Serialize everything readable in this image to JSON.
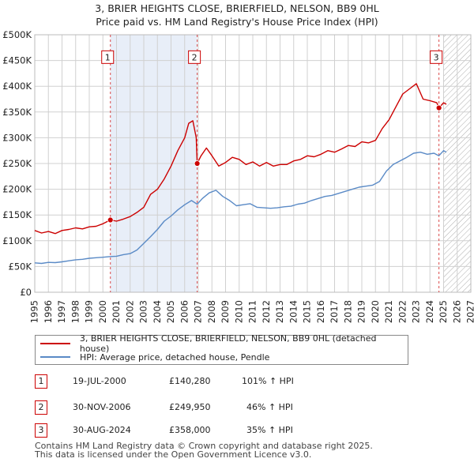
{
  "header": {
    "title_line1": "3, BRIER HEIGHTS CLOSE, BRIERFIELD, NELSON, BB9 0HL",
    "title_line2": "Price paid vs. HM Land Registry's House Price Index (HPI)"
  },
  "colors": {
    "property": "#cc0000",
    "hpi": "#5a8ac6",
    "shade": "#e8eef8",
    "grid": "#d0d0d0"
  },
  "chart_data": {
    "type": "line",
    "title": "Price paid vs. HM Land Registry's House Price Index (HPI)",
    "xlabel": "",
    "ylabel": "",
    "xlim": [
      1995,
      2027
    ],
    "ylim": [
      0,
      500000
    ],
    "x_ticks": [
      "1995",
      "1996",
      "1997",
      "1998",
      "1999",
      "2000",
      "2001",
      "2002",
      "2003",
      "2004",
      "2005",
      "2006",
      "2007",
      "2008",
      "2009",
      "2010",
      "2011",
      "2012",
      "2013",
      "2014",
      "2015",
      "2016",
      "2017",
      "2018",
      "2019",
      "2020",
      "2021",
      "2022",
      "2023",
      "2024",
      "2025",
      "2026",
      "2027"
    ],
    "y_ticks": [
      {
        "value": 0,
        "label": "£0"
      },
      {
        "value": 50000,
        "label": "£50K"
      },
      {
        "value": 100000,
        "label": "£100K"
      },
      {
        "value": 150000,
        "label": "£150K"
      },
      {
        "value": 200000,
        "label": "£200K"
      },
      {
        "value": 250000,
        "label": "£250K"
      },
      {
        "value": 300000,
        "label": "£300K"
      },
      {
        "value": 350000,
        "label": "£350K"
      },
      {
        "value": 400000,
        "label": "£400K"
      },
      {
        "value": 450000,
        "label": "£450K"
      },
      {
        "value": 500000,
        "label": "£500K"
      }
    ],
    "grid": true,
    "shaded_period": [
      2000.55,
      2006.92
    ],
    "forecast_hatch_start": 2025.0,
    "series": [
      {
        "name": "3, BRIER HEIGHTS CLOSE, BRIERFIELD, NELSON, BB9 0HL (detached house)",
        "color": "#cc0000",
        "x": [
          1995.0,
          1995.5,
          1996.0,
          1996.5,
          1997.0,
          1997.5,
          1998.0,
          1998.5,
          1999.0,
          1999.5,
          2000.0,
          2000.55,
          2001.0,
          2001.5,
          2002.0,
          2002.5,
          2003.0,
          2003.5,
          2004.0,
          2004.5,
          2005.0,
          2005.5,
          2006.0,
          2006.3,
          2006.6,
          2006.85,
          2006.92,
          2007.2,
          2007.6,
          2008.0,
          2008.5,
          2009.0,
          2009.5,
          2010.0,
          2010.5,
          2011.0,
          2011.5,
          2012.0,
          2012.5,
          2013.0,
          2013.5,
          2014.0,
          2014.5,
          2015.0,
          2015.5,
          2016.0,
          2016.5,
          2017.0,
          2017.5,
          2018.0,
          2018.5,
          2019.0,
          2019.5,
          2020.0,
          2020.5,
          2021.0,
          2021.5,
          2022.0,
          2022.5,
          2023.0,
          2023.5,
          2024.0,
          2024.5,
          2024.66,
          2025.0,
          2025.2
        ],
        "values": [
          120000,
          115000,
          118000,
          114000,
          120000,
          122000,
          125000,
          123000,
          127000,
          128000,
          133000,
          140280,
          138000,
          142000,
          147000,
          155000,
          165000,
          190000,
          200000,
          220000,
          245000,
          275000,
          300000,
          328000,
          333000,
          300000,
          249950,
          265000,
          280000,
          265000,
          245000,
          252000,
          262000,
          258000,
          248000,
          253000,
          245000,
          252000,
          245000,
          248000,
          248000,
          255000,
          258000,
          265000,
          263000,
          268000,
          275000,
          272000,
          278000,
          285000,
          283000,
          292000,
          290000,
          295000,
          318000,
          335000,
          360000,
          385000,
          395000,
          405000,
          375000,
          372000,
          368000,
          358000,
          368000,
          365000
        ]
      },
      {
        "name": "HPI: Average price, detached house, Pendle",
        "color": "#5a8ac6",
        "x": [
          1995.0,
          1995.5,
          1996.0,
          1996.5,
          1997.0,
          1997.5,
          1998.0,
          1998.5,
          1999.0,
          1999.5,
          2000.0,
          2000.55,
          2001.0,
          2001.5,
          2002.0,
          2002.5,
          2003.0,
          2003.5,
          2004.0,
          2004.5,
          2005.0,
          2005.5,
          2006.0,
          2006.5,
          2006.92,
          2007.3,
          2007.8,
          2008.3,
          2008.8,
          2009.3,
          2009.8,
          2010.3,
          2010.8,
          2011.3,
          2011.8,
          2012.3,
          2012.8,
          2013.3,
          2013.8,
          2014.3,
          2014.8,
          2015.3,
          2015.8,
          2016.3,
          2016.8,
          2017.3,
          2017.8,
          2018.3,
          2018.8,
          2019.3,
          2019.8,
          2020.3,
          2020.8,
          2021.3,
          2021.8,
          2022.3,
          2022.8,
          2023.3,
          2023.8,
          2024.3,
          2024.66,
          2025.0,
          2025.2
        ],
        "values": [
          57000,
          56000,
          58000,
          57500,
          59000,
          61000,
          63000,
          64000,
          66000,
          67000,
          68000,
          69300,
          70000,
          73000,
          75000,
          82000,
          95000,
          108000,
          122000,
          138000,
          148000,
          160000,
          170000,
          178000,
          171000,
          182000,
          193000,
          198000,
          186000,
          178000,
          168000,
          170000,
          172000,
          165000,
          164000,
          163000,
          164000,
          166000,
          167000,
          171000,
          173000,
          178000,
          182000,
          186000,
          188000,
          192000,
          196000,
          200000,
          204000,
          206000,
          208000,
          215000,
          235000,
          248000,
          255000,
          262000,
          270000,
          272000,
          268000,
          270000,
          265000,
          275000,
          272000
        ]
      }
    ],
    "transactions": [
      {
        "id": "1",
        "x": 2000.55,
        "value": 140280,
        "label_value": 455000
      },
      {
        "id": "2",
        "x": 2006.92,
        "value": 249950,
        "label_value": 455000
      },
      {
        "id": "3",
        "x": 2024.66,
        "value": 358000,
        "label_value": 455000
      }
    ]
  },
  "legend": {
    "property_label": "3, BRIER HEIGHTS CLOSE, BRIERFIELD, NELSON, BB9 0HL (detached house)",
    "hpi_label": "HPI: Average price, detached house, Pendle"
  },
  "transactions_table": [
    {
      "id": "1",
      "date": "19-JUL-2000",
      "price": "£140,280",
      "hpi": "101% ↑ HPI"
    },
    {
      "id": "2",
      "date": "30-NOV-2006",
      "price": "£249,950",
      "hpi": "46% ↑ HPI"
    },
    {
      "id": "3",
      "date": "30-AUG-2024",
      "price": "£358,000",
      "hpi": "35% ↑ HPI"
    }
  ],
  "footer": {
    "line1": "Contains HM Land Registry data © Crown copyright and database right 2025.",
    "line2": "This data is licensed under the Open Government Licence v3.0."
  }
}
